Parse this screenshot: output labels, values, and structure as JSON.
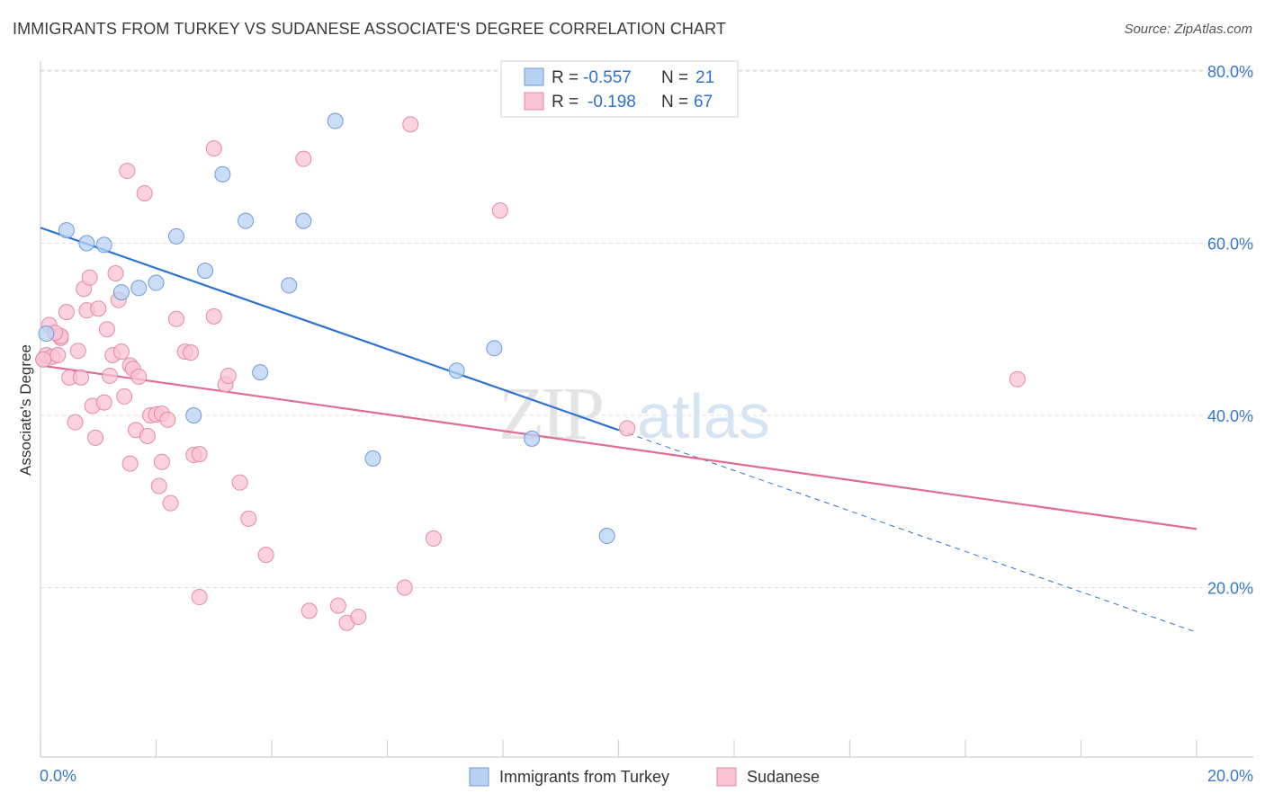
{
  "header": {
    "title": "IMMIGRANTS FROM TURKEY VS SUDANESE ASSOCIATE'S DEGREE CORRELATION CHART",
    "source": "Source: ZipAtlas.com"
  },
  "watermark": {
    "zip": "ZIP",
    "atlas": "atlas"
  },
  "colors": {
    "turkey_fill": "#b8d1f3",
    "turkey_stroke": "#6f9ad8",
    "turkey_line": "#2d72d2",
    "sudanese_fill": "#f9c3d2",
    "sudanese_stroke": "#e48aa8",
    "sudanese_line": "#e06b94",
    "tick_label": "#3a78c9",
    "grid": "#dddddd"
  },
  "chart_data": {
    "type": "scatter",
    "title": "IMMIGRANTS FROM TURKEY VS SUDANESE ASSOCIATE'S DEGREE CORRELATION CHART",
    "xlabel": "",
    "ylabel": "Associate's Degree",
    "xlim": [
      0,
      20
    ],
    "ylim": [
      0,
      85
    ],
    "x_tick_labels": [
      "0.0%",
      "20.0%"
    ],
    "y_ticks": [
      20,
      40,
      60,
      80
    ],
    "y_tick_labels": [
      "20.0%",
      "40.0%",
      "60.0%",
      "80.0%"
    ],
    "grid": true,
    "legend_position": "top-center",
    "legend": [
      {
        "r_label": "R =",
        "r_value": "-0.557",
        "n_label": "N =",
        "n_value": "21"
      },
      {
        "r_label": "R =",
        "r_value": "-0.198",
        "n_label": "N =",
        "n_value": "67"
      }
    ],
    "bottom_legend": [
      "Immigrants from Turkey",
      "Sudanese"
    ],
    "series": [
      {
        "name": "Immigrants from Turkey",
        "points": [
          [
            0.1,
            49.5
          ],
          [
            0.45,
            61.5
          ],
          [
            0.8,
            60.0
          ],
          [
            1.1,
            59.8
          ],
          [
            1.4,
            54.3
          ],
          [
            1.7,
            54.8
          ],
          [
            2.0,
            55.4
          ],
          [
            2.35,
            60.8
          ],
          [
            2.85,
            56.8
          ],
          [
            3.15,
            68.0
          ],
          [
            3.55,
            62.6
          ],
          [
            3.8,
            45.0
          ],
          [
            4.3,
            55.1
          ],
          [
            4.55,
            62.6
          ],
          [
            5.1,
            74.2
          ],
          [
            5.75,
            35.0
          ],
          [
            2.65,
            40.0
          ],
          [
            7.2,
            45.2
          ],
          [
            7.85,
            47.8
          ],
          [
            8.5,
            37.3
          ],
          [
            9.8,
            26.0
          ]
        ],
        "trend": {
          "x0": 0.0,
          "y0": 61.8,
          "x1": 10.0,
          "y1": 38.3,
          "dashed_to_x": 20.0,
          "dashed_to_y": 14.8
        }
      },
      {
        "name": "Sudanese",
        "points": [
          [
            0.05,
            46.5
          ],
          [
            0.1,
            47.0
          ],
          [
            0.15,
            50.5
          ],
          [
            0.2,
            46.8
          ],
          [
            0.3,
            47.0
          ],
          [
            0.35,
            49.0
          ],
          [
            0.35,
            49.2
          ],
          [
            0.45,
            52.0
          ],
          [
            0.5,
            44.4
          ],
          [
            0.6,
            39.2
          ],
          [
            0.65,
            47.5
          ],
          [
            0.7,
            44.4
          ],
          [
            0.75,
            54.7
          ],
          [
            0.8,
            52.2
          ],
          [
            0.85,
            56.0
          ],
          [
            0.9,
            41.1
          ],
          [
            0.95,
            37.4
          ],
          [
            1.0,
            52.4
          ],
          [
            1.1,
            41.5
          ],
          [
            1.15,
            50.0
          ],
          [
            1.2,
            44.6
          ],
          [
            1.25,
            47.0
          ],
          [
            1.3,
            56.5
          ],
          [
            1.35,
            53.4
          ],
          [
            1.4,
            47.4
          ],
          [
            1.45,
            42.2
          ],
          [
            1.5,
            68.4
          ],
          [
            1.55,
            45.8
          ],
          [
            1.55,
            34.4
          ],
          [
            1.6,
            45.4
          ],
          [
            1.65,
            38.3
          ],
          [
            1.7,
            44.5
          ],
          [
            1.8,
            65.8
          ],
          [
            1.85,
            37.6
          ],
          [
            1.9,
            40.0
          ],
          [
            2.0,
            40.1
          ],
          [
            2.05,
            31.8
          ],
          [
            2.1,
            40.2
          ],
          [
            2.1,
            34.6
          ],
          [
            2.2,
            39.5
          ],
          [
            2.25,
            29.8
          ],
          [
            2.35,
            51.2
          ],
          [
            2.5,
            47.4
          ],
          [
            2.6,
            47.3
          ],
          [
            2.65,
            35.4
          ],
          [
            2.75,
            35.5
          ],
          [
            2.75,
            18.9
          ],
          [
            3.0,
            51.5
          ],
          [
            3.0,
            71.0
          ],
          [
            3.2,
            43.6
          ],
          [
            3.25,
            44.6
          ],
          [
            3.45,
            32.2
          ],
          [
            3.6,
            28.0
          ],
          [
            3.9,
            23.8
          ],
          [
            4.55,
            69.8
          ],
          [
            4.65,
            17.3
          ],
          [
            5.15,
            17.9
          ],
          [
            5.3,
            15.9
          ],
          [
            5.5,
            16.6
          ],
          [
            6.3,
            20.0
          ],
          [
            6.4,
            73.8
          ],
          [
            6.8,
            25.7
          ],
          [
            7.95,
            63.8
          ],
          [
            10.15,
            38.5
          ],
          [
            16.9,
            44.2
          ],
          [
            0.05,
            46.5
          ],
          [
            0.25,
            49.6
          ]
        ],
        "trend": {
          "x0": 0.0,
          "y0": 45.8,
          "x1": 20.0,
          "y1": 26.8
        }
      }
    ]
  }
}
